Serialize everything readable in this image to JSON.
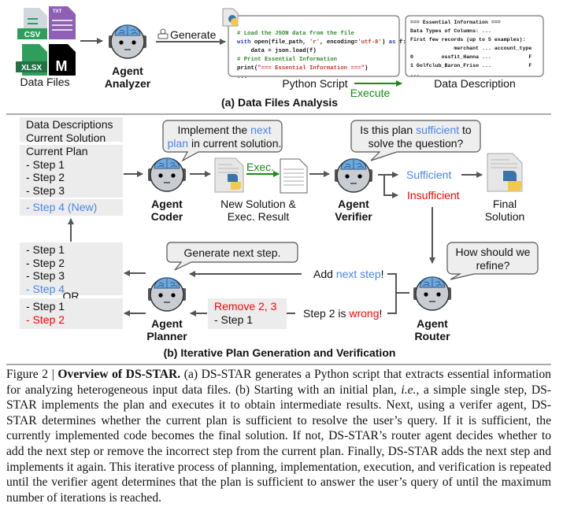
{
  "part_a": {
    "file_types": [
      "CSV",
      "TXT",
      "XLSX",
      "M"
    ],
    "files_label": "Data Files",
    "analyzer_label": [
      "Agent",
      "Analyzer"
    ],
    "generate_label": "Generate",
    "code_lines": [
      {
        "cm": "# Load the JSON data from the file"
      },
      {
        "kw": "with",
        "pl": " open(file_path, ",
        "st": "'r'",
        "pl2": ", encoding=",
        "st2": "'utf-8'",
        "pl3": ") ",
        "kw2": "as",
        "pl4": " f:"
      },
      {
        "pl": "    data = json.load(f)"
      },
      {
        "cm": "# Print Essential Information"
      },
      {
        "pl": "print(",
        "st": "\"=== Essential Information ===\"",
        "pl2": ")"
      },
      {
        "pl": "..."
      }
    ],
    "desc_lines": [
      "=== Essential Information ===",
      "Data Types of Columns: ...",
      "First few records (up to 5 examples):",
      "              merchant ... account_type",
      "0         ossfit_Hanna ...            F",
      "1 Golfclub_Baron_Friso ...            F",
      "..."
    ],
    "script_label": "Python Script",
    "desc_label": "Data Description",
    "execute_label": "Execute",
    "title": "(a) Data Files Analysis"
  },
  "part_b": {
    "context_box": [
      "Data Descriptions",
      "Current Solution"
    ],
    "current_plan_title": "Current Plan",
    "current_plan_steps": [
      "- Step 1",
      "- Step 2",
      "- Step 3"
    ],
    "new_step": "- Step 4 (New)",
    "add_option_steps": [
      "- Step 1",
      "- Step 2",
      "- Step 3"
    ],
    "add_option_new": "- Step 4",
    "or_label": "OR",
    "remove_option_steps": [
      "- Step 1"
    ],
    "remove_option_wrong": "- Step 2",
    "coder_label": [
      "Agent",
      "Coder"
    ],
    "coder_bubble": {
      "pre": "Implement the ",
      "hl": "next",
      "line2_hl": "plan",
      "post": " in current solution."
    },
    "exec_label": "Exec.",
    "solution_label": [
      "New Solution &",
      "Exec. Result"
    ],
    "verifier_label": [
      "Agent",
      "Verifier"
    ],
    "verifier_bubble": {
      "pre": "Is this plan ",
      "hl": "sufficient",
      "post": " to",
      "line2": "solve the question?"
    },
    "sufficient": "Sufficient",
    "insufficient": "Insufficient",
    "final_label": [
      "Final",
      "Solution"
    ],
    "router_label": [
      "Agent",
      "Router"
    ],
    "router_bubble": [
      "How should we",
      "refine?"
    ],
    "add_msg": {
      "pre": "Add ",
      "hl": "next step",
      "post": "!"
    },
    "wrong_msg": {
      "pre": "Step 2 is ",
      "hl": "wrong",
      "post": "!"
    },
    "planner_label": [
      "Agent",
      "Planner"
    ],
    "planner_bubble": "Generate next step.",
    "remove_box": {
      "title": "Remove 2, 3",
      "step": "- Step 1"
    },
    "title": "(b) Iterative Plan Generation and Verification"
  },
  "caption": {
    "label": "Figure 2 | ",
    "bold": "Overview of DS-STAR.",
    "text1": " (a) DS-STAR generates a Python script that extracts essential information for analyzing heterogeneous input data files. (b) Starting with an initial plan, ",
    "italic": "i.e.",
    "text2": ", a simple single step, DS-STAR implements the plan and executes it to obtain intermediate results. Next, using a verifer agent, DS-STAR determines whether the current plan is sufficient to resolve the user’s query. If it is sufficient, the currently implemented code becomes the final solution. If not, DS-STAR’s router agent decides whether to add the next step or remove the incorrect step from the current plan. Finally, DS-STAR adds the next step and implements it again. This iterative process of planning, implementation, execution, and verification is repeated until the verifier agent determines that the plan is sufficient to answer the user’s query of until the maximum number of iterations is reached."
  },
  "colors": {
    "highlight_blue": "#4a86e8",
    "highlight_red": "#ff0000",
    "execute_green": "#1a8a1a",
    "box_gray": "#ececec"
  }
}
